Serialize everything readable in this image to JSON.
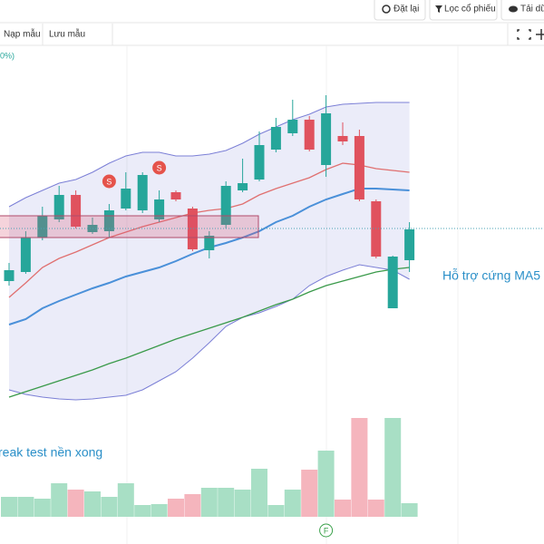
{
  "toolbar": [
    "Đặt lại",
    "Lọc cổ phiếu",
    "Tải dữ"
  ],
  "tabs": [
    "Nạp mẫu",
    "Lưu mẫu"
  ],
  "legend_fragment": "0%)",
  "chart_data": {
    "type": "candlestick",
    "ylim": [
      0,
      400
    ],
    "up_color": "#26a69a",
    "down_color": "#e0525e",
    "open": [
      140,
      150,
      188,
      208,
      235,
      194,
      195,
      220,
      218,
      208,
      238,
      220,
      174,
      202,
      240,
      252,
      285,
      303,
      318,
      268,
      300,
      300,
      228,
      110,
      163
    ],
    "close": [
      152,
      188,
      212,
      235,
      200,
      202,
      218,
      242,
      257,
      230,
      230,
      175,
      190,
      245,
      248,
      290,
      310,
      318,
      285,
      325,
      294,
      230,
      167,
      167,
      197
    ],
    "high": [
      160,
      195,
      222,
      245,
      240,
      210,
      225,
      260,
      260,
      240,
      240,
      222,
      195,
      250,
      275,
      305,
      320,
      340,
      322,
      345,
      315,
      307,
      230,
      168,
      205
    ],
    "low": [
      135,
      148,
      185,
      205,
      198,
      192,
      188,
      218,
      215,
      205,
      228,
      173,
      165,
      198,
      238,
      250,
      282,
      300,
      283,
      255,
      290,
      228,
      165,
      110,
      150
    ],
    "volume": {
      "ylim": [
        0,
        120
      ],
      "up_color": "#a8dfc5",
      "down_color": "#f5b5bd",
      "values": [
        22,
        22,
        20,
        37,
        30,
        28,
        22,
        37,
        13,
        14,
        20,
        25,
        32,
        32,
        30,
        53,
        13,
        30,
        52,
        73,
        19,
        109,
        19,
        109,
        15
      ]
    },
    "lines": [
      {
        "color": "#4a90d9",
        "values": [
          92,
          98,
          110,
          118,
          125,
          132,
          138,
          145,
          150,
          155,
          162,
          170,
          177,
          182,
          188,
          195,
          205,
          212,
          222,
          230,
          236,
          242,
          242,
          241,
          240
        ]
      },
      {
        "color": "#e07070",
        "values": [
          122,
          138,
          155,
          165,
          172,
          180,
          188,
          194,
          200,
          205,
          210,
          215,
          218,
          220,
          225,
          235,
          242,
          248,
          254,
          263,
          270,
          268,
          264,
          262,
          260
        ]
      },
      {
        "color": "#3a9a4a",
        "values": [
          12,
          18,
          24,
          30,
          36,
          42,
          49,
          55,
          62,
          69,
          76,
          82,
          88,
          94,
          100,
          107,
          114,
          120,
          128,
          135,
          140,
          145,
          150,
          153,
          155
        ]
      }
    ],
    "bands": {
      "color": "#7b7fd6",
      "upper": [
        222,
        232,
        240,
        248,
        252,
        260,
        270,
        278,
        282,
        282,
        278,
        278,
        280,
        284,
        292,
        302,
        310,
        318,
        324,
        332,
        335,
        336,
        337,
        337,
        337
      ],
      "lower": [
        20,
        15,
        12,
        10,
        9,
        10,
        12,
        14,
        20,
        30,
        40,
        55,
        72,
        90,
        100,
        105,
        112,
        120,
        135,
        145,
        152,
        158,
        155,
        152,
        142
      ]
    },
    "signals": [
      {
        "label": "S",
        "index": 6
      },
      {
        "label": "S",
        "index": 9
      },
      {
        "label": "F",
        "index": 19
      }
    ],
    "annotations": [
      "Hỗ trợ cứng MA5",
      "reak test nền xong"
    ]
  }
}
